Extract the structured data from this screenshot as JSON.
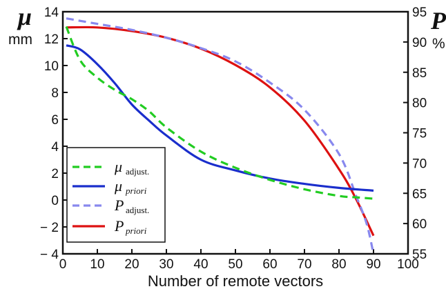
{
  "chart_data": {
    "type": "line",
    "xlabel": "Number of remote vectors",
    "left_axis": {
      "symbol": "μ",
      "unit": "mm",
      "ylim": [
        -4,
        14
      ],
      "ticks": [
        "14",
        "12",
        "10",
        "8",
        "6",
        "4",
        "2",
        "0",
        "− 2",
        "− 4"
      ]
    },
    "right_axis": {
      "symbol": "P",
      "unit": "%",
      "ylim": [
        55,
        95
      ],
      "ticks": [
        "95",
        "90",
        "85",
        "80",
        "75",
        "70",
        "65",
        "60",
        "55"
      ]
    },
    "xlim": [
      0,
      100
    ],
    "xticks": [
      "0",
      "10",
      "20",
      "30",
      "40",
      "50",
      "60",
      "70",
      "80",
      "90",
      "100"
    ],
    "grid": false,
    "legend_position": "bottom-left",
    "series": [
      {
        "name": "μ adjust.",
        "legend_main": "μ",
        "legend_sub": "adjust.",
        "axis": "left",
        "style": "dashed",
        "color": "#22cc22",
        "x": [
          1,
          5,
          10,
          15,
          20,
          25,
          30,
          40,
          50,
          60,
          70,
          80,
          85,
          90
        ],
        "y": [
          12.9,
          10.4,
          9.1,
          8.2,
          7.5,
          6.6,
          5.4,
          3.6,
          2.4,
          1.5,
          0.8,
          0.3,
          0.2,
          0.1
        ]
      },
      {
        "name": "μ priori",
        "legend_main": "μ",
        "legend_sub": "priori",
        "axis": "left",
        "style": "solid",
        "color": "#1a2ecc",
        "x": [
          1,
          5,
          10,
          15,
          20,
          25,
          30,
          40,
          50,
          60,
          70,
          80,
          90
        ],
        "y": [
          11.5,
          11.2,
          10.1,
          8.7,
          7.1,
          5.9,
          4.8,
          3.0,
          2.2,
          1.6,
          1.2,
          0.9,
          0.7
        ]
      },
      {
        "name": "P adjust.",
        "legend_main": "P",
        "legend_sub": "adjust.",
        "axis": "right",
        "style": "dashed",
        "color": "#8888ee",
        "x": [
          1,
          10,
          20,
          30,
          40,
          50,
          60,
          70,
          80,
          85,
          88,
          90
        ],
        "y": [
          93.9,
          93.0,
          92.0,
          90.7,
          89.0,
          86.8,
          83.3,
          78.8,
          71.5,
          64.5,
          60.0,
          55.0
        ]
      },
      {
        "name": "P priori",
        "legend_main": "P",
        "legend_sub": "priori",
        "axis": "right",
        "style": "solid",
        "color": "#dd1111",
        "x": [
          1,
          10,
          20,
          30,
          40,
          50,
          60,
          70,
          80,
          85,
          90
        ],
        "y": [
          92.4,
          92.4,
          91.8,
          90.7,
          88.9,
          86.2,
          82.5,
          77.0,
          69.0,
          64.0,
          58.0
        ]
      }
    ]
  }
}
